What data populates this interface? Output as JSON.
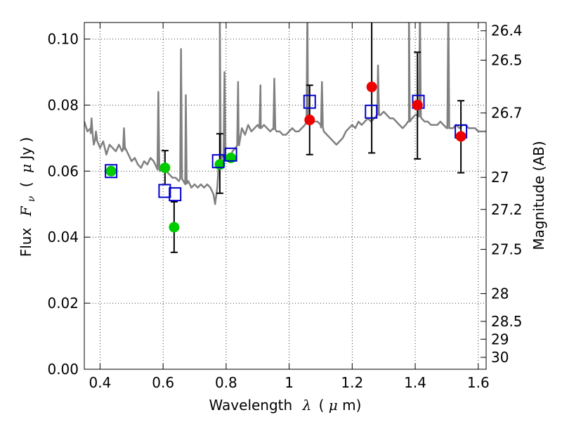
{
  "chart_data": {
    "type": "scatter",
    "xlabel_text": "Wavelength",
    "xlabel_symbol": "λ",
    "xlabel_unit_open": "(",
    "xlabel_unit_mu": "μ",
    "xlabel_unit_rest": "m)",
    "ylabel_text": "Flux",
    "ylabel_symbol": "F",
    "ylabel_sub": "ν",
    "ylabel_unit_open": "(",
    "ylabel_unit_mu": "μ",
    "ylabel_unit_rest": "Jy )",
    "y2label": "Magnitude (AB)",
    "xlim": [
      0.35,
      1.625
    ],
    "ylim": [
      0.0,
      0.105
    ],
    "grid": true,
    "colors": {
      "spectrum": "#808080",
      "model_squares": "#0000cc",
      "green": "#00cc00",
      "red": "#ee0000",
      "errorbar": "#000000"
    },
    "x_ticks": [
      {
        "value": 0.4,
        "label": "0.4"
      },
      {
        "value": 0.6,
        "label": "0.6"
      },
      {
        "value": 0.8,
        "label": "0.8"
      },
      {
        "value": 1.0,
        "label": "1"
      },
      {
        "value": 1.2,
        "label": "1.2"
      },
      {
        "value": 1.4,
        "label": "1.4"
      },
      {
        "value": 1.6,
        "label": "1.6"
      }
    ],
    "y_ticks": [
      {
        "value": 0.0,
        "label": "0.00"
      },
      {
        "value": 0.02,
        "label": "0.02"
      },
      {
        "value": 0.04,
        "label": "0.04"
      },
      {
        "value": 0.06,
        "label": "0.06"
      },
      {
        "value": 0.08,
        "label": "0.08"
      },
      {
        "value": 0.1,
        "label": "0.10"
      }
    ],
    "y2_ticks": [
      {
        "flux": 0.1025,
        "label": "26.4"
      },
      {
        "flux": 0.0936,
        "label": "26.5"
      },
      {
        "flux": 0.0776,
        "label": "26.7"
      },
      {
        "flux": 0.0581,
        "label": "27"
      },
      {
        "flux": 0.0484,
        "label": "27.2"
      },
      {
        "flux": 0.0363,
        "label": "27.5"
      },
      {
        "flux": 0.0229,
        "label": "28"
      },
      {
        "flux": 0.0145,
        "label": "28.5"
      },
      {
        "flux": 0.0091,
        "label": "29"
      },
      {
        "flux": 0.0036,
        "label": "30"
      }
    ],
    "spectrum": [
      [
        0.35,
        0.075
      ],
      [
        0.36,
        0.072
      ],
      [
        0.37,
        0.073
      ],
      [
        0.38,
        0.068
      ],
      [
        0.39,
        0.07
      ],
      [
        0.4,
        0.067
      ],
      [
        0.41,
        0.069
      ],
      [
        0.42,
        0.065
      ],
      [
        0.43,
        0.068
      ],
      [
        0.44,
        0.067
      ],
      [
        0.45,
        0.066
      ],
      [
        0.46,
        0.068
      ],
      [
        0.47,
        0.066
      ],
      [
        0.48,
        0.067
      ],
      [
        0.49,
        0.065
      ],
      [
        0.5,
        0.063
      ],
      [
        0.51,
        0.064
      ],
      [
        0.52,
        0.062
      ],
      [
        0.53,
        0.061
      ],
      [
        0.54,
        0.063
      ],
      [
        0.55,
        0.062
      ],
      [
        0.56,
        0.064
      ],
      [
        0.57,
        0.063
      ],
      [
        0.58,
        0.061
      ],
      [
        0.59,
        0.06
      ],
      [
        0.6,
        0.061
      ],
      [
        0.61,
        0.06
      ],
      [
        0.62,
        0.059
      ],
      [
        0.63,
        0.058
      ],
      [
        0.64,
        0.058
      ],
      [
        0.65,
        0.057
      ],
      [
        0.66,
        0.058
      ],
      [
        0.67,
        0.056
      ],
      [
        0.68,
        0.057
      ],
      [
        0.69,
        0.055
      ],
      [
        0.7,
        0.056
      ],
      [
        0.71,
        0.055
      ],
      [
        0.72,
        0.056
      ],
      [
        0.73,
        0.055
      ],
      [
        0.74,
        0.056
      ],
      [
        0.75,
        0.055
      ],
      [
        0.76,
        0.053
      ],
      [
        0.765,
        0.05
      ],
      [
        0.772,
        0.055
      ],
      [
        0.78,
        0.063
      ],
      [
        0.79,
        0.065
      ],
      [
        0.8,
        0.064
      ],
      [
        0.81,
        0.063
      ],
      [
        0.82,
        0.066
      ],
      [
        0.83,
        0.067
      ],
      [
        0.84,
        0.068
      ],
      [
        0.85,
        0.073
      ],
      [
        0.86,
        0.071
      ],
      [
        0.87,
        0.074
      ],
      [
        0.88,
        0.072
      ],
      [
        0.89,
        0.073
      ],
      [
        0.9,
        0.074
      ],
      [
        0.91,
        0.073
      ],
      [
        0.92,
        0.074
      ],
      [
        0.93,
        0.073
      ],
      [
        0.94,
        0.072
      ],
      [
        0.95,
        0.073
      ],
      [
        0.96,
        0.072
      ],
      [
        0.97,
        0.072
      ],
      [
        0.98,
        0.071
      ],
      [
        0.99,
        0.071
      ],
      [
        1.0,
        0.072
      ],
      [
        1.01,
        0.073
      ],
      [
        1.02,
        0.072
      ],
      [
        1.03,
        0.072
      ],
      [
        1.04,
        0.073
      ],
      [
        1.05,
        0.074
      ],
      [
        1.06,
        0.075
      ],
      [
        1.07,
        0.076
      ],
      [
        1.08,
        0.075
      ],
      [
        1.09,
        0.075
      ],
      [
        1.1,
        0.074
      ],
      [
        1.11,
        0.072
      ],
      [
        1.12,
        0.071
      ],
      [
        1.13,
        0.07
      ],
      [
        1.14,
        0.069
      ],
      [
        1.15,
        0.068
      ],
      [
        1.16,
        0.069
      ],
      [
        1.17,
        0.07
      ],
      [
        1.18,
        0.072
      ],
      [
        1.19,
        0.073
      ],
      [
        1.2,
        0.074
      ],
      [
        1.21,
        0.073
      ],
      [
        1.22,
        0.075
      ],
      [
        1.23,
        0.074
      ],
      [
        1.24,
        0.075
      ],
      [
        1.25,
        0.076
      ],
      [
        1.26,
        0.075
      ],
      [
        1.27,
        0.076
      ],
      [
        1.28,
        0.077
      ],
      [
        1.29,
        0.077
      ],
      [
        1.3,
        0.078
      ],
      [
        1.31,
        0.077
      ],
      [
        1.32,
        0.076
      ],
      [
        1.33,
        0.076
      ],
      [
        1.34,
        0.075
      ],
      [
        1.35,
        0.074
      ],
      [
        1.36,
        0.073
      ],
      [
        1.37,
        0.074
      ],
      [
        1.38,
        0.075
      ],
      [
        1.39,
        0.076
      ],
      [
        1.4,
        0.077
      ],
      [
        1.41,
        0.077
      ],
      [
        1.42,
        0.076
      ],
      [
        1.43,
        0.075
      ],
      [
        1.44,
        0.075
      ],
      [
        1.45,
        0.074
      ],
      [
        1.46,
        0.074
      ],
      [
        1.47,
        0.074
      ],
      [
        1.48,
        0.075
      ],
      [
        1.49,
        0.074
      ],
      [
        1.5,
        0.073
      ],
      [
        1.51,
        0.073
      ],
      [
        1.52,
        0.073
      ],
      [
        1.53,
        0.074
      ],
      [
        1.54,
        0.073
      ],
      [
        1.55,
        0.074
      ],
      [
        1.56,
        0.074
      ],
      [
        1.57,
        0.073
      ],
      [
        1.58,
        0.073
      ],
      [
        1.59,
        0.073
      ],
      [
        1.6,
        0.072
      ],
      [
        1.61,
        0.072
      ],
      [
        1.625,
        0.072
      ]
    ],
    "spectrum_lines": [
      {
        "x": 0.373,
        "peak": 0.076
      },
      {
        "x": 0.387,
        "peak": 0.072
      },
      {
        "x": 0.476,
        "peak": 0.073
      },
      {
        "x": 0.585,
        "peak": 0.084
      },
      {
        "x": 0.657,
        "peak": 0.097
      },
      {
        "x": 0.672,
        "peak": 0.083
      },
      {
        "x": 0.78,
        "peak": 0.107
      },
      {
        "x": 0.795,
        "peak": 0.09
      },
      {
        "x": 0.838,
        "peak": 0.087
      },
      {
        "x": 0.909,
        "peak": 0.086
      },
      {
        "x": 0.953,
        "peak": 0.088
      },
      {
        "x": 1.058,
        "peak": 0.11
      },
      {
        "x": 1.104,
        "peak": 0.087
      },
      {
        "x": 1.282,
        "peak": 0.092
      },
      {
        "x": 1.38,
        "peak": 0.11
      },
      {
        "x": 1.415,
        "peak": 0.11
      },
      {
        "x": 1.505,
        "peak": 0.11
      }
    ],
    "model_squares": [
      {
        "x": 0.435,
        "y": 0.06
      },
      {
        "x": 0.605,
        "y": 0.054
      },
      {
        "x": 0.638,
        "y": 0.053
      },
      {
        "x": 0.775,
        "y": 0.063
      },
      {
        "x": 0.815,
        "y": 0.065
      },
      {
        "x": 1.065,
        "y": 0.081
      },
      {
        "x": 1.26,
        "y": 0.078
      },
      {
        "x": 1.41,
        "y": 0.081
      },
      {
        "x": 1.545,
        "y": 0.072
      }
    ],
    "green_points": [
      {
        "x": 0.435,
        "y": 0.06
      },
      {
        "x": 0.606,
        "y": 0.061,
        "err_low": 0.0051,
        "err_high": 0.0052
      },
      {
        "x": 0.635,
        "y": 0.043,
        "err_low": 0.0076,
        "err_high": 0.0077
      },
      {
        "x": 0.78,
        "y": 0.062,
        "err_low": 0.0087,
        "err_high": 0.0093
      },
      {
        "x": 0.815,
        "y": 0.064
      }
    ],
    "red_points": [
      {
        "x": 1.065,
        "y": 0.0755,
        "err_low": 0.0105,
        "err_high": 0.0105
      },
      {
        "x": 1.262,
        "y": 0.0855,
        "err_low": 0.02,
        "err_high": 0.02
      },
      {
        "x": 1.407,
        "y": 0.08,
        "err_low": 0.0163,
        "err_high": 0.016
      },
      {
        "x": 1.545,
        "y": 0.0705,
        "err_low": 0.011,
        "err_high": 0.0108
      }
    ]
  }
}
